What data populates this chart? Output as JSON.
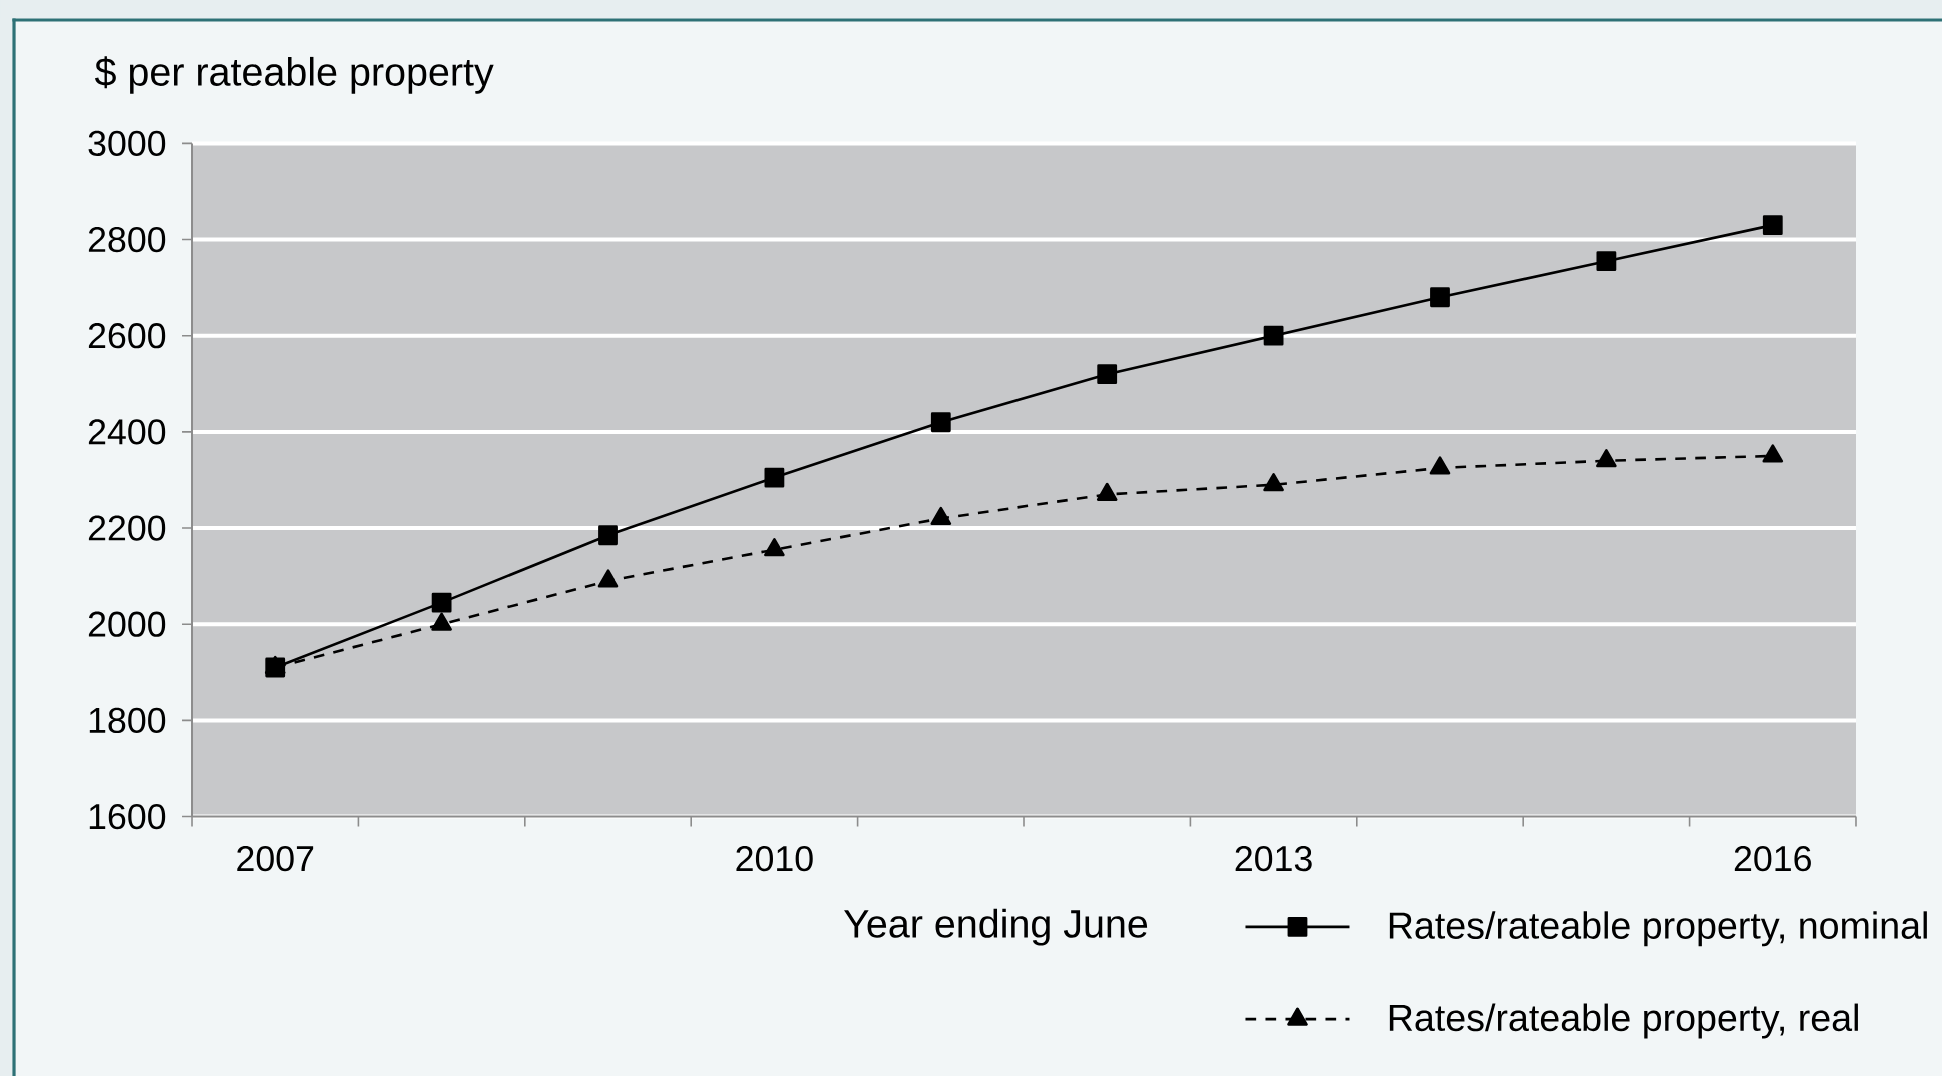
{
  "chart_data": {
    "type": "line",
    "xlabel": "Year ending June",
    "ylabel": "$ per rateable property",
    "categories": [
      "2007",
      null,
      null,
      "2010",
      null,
      null,
      "2013",
      null,
      null,
      "2016"
    ],
    "series": [
      {
        "name": "Rates/rateable property, nominal",
        "color": "#000000",
        "marker": "square",
        "line_style": "solid",
        "values": [
          1910,
          2045,
          2185,
          2305,
          2420,
          2520,
          2600,
          2680,
          2755,
          2830
        ]
      },
      {
        "name": "Rates/rateable property, real",
        "color": "#000000",
        "marker": "triangle",
        "line_style": "dashed",
        "values": [
          1910,
          2000,
          2090,
          2155,
          2220,
          2270,
          2290,
          2325,
          2340,
          2350
        ]
      }
    ],
    "ylim": [
      1600,
      3000
    ],
    "yticks": [
      1600,
      1800,
      2000,
      2200,
      2400,
      2600,
      2800,
      3000
    ],
    "grid": "y",
    "legend": "bottom right"
  }
}
